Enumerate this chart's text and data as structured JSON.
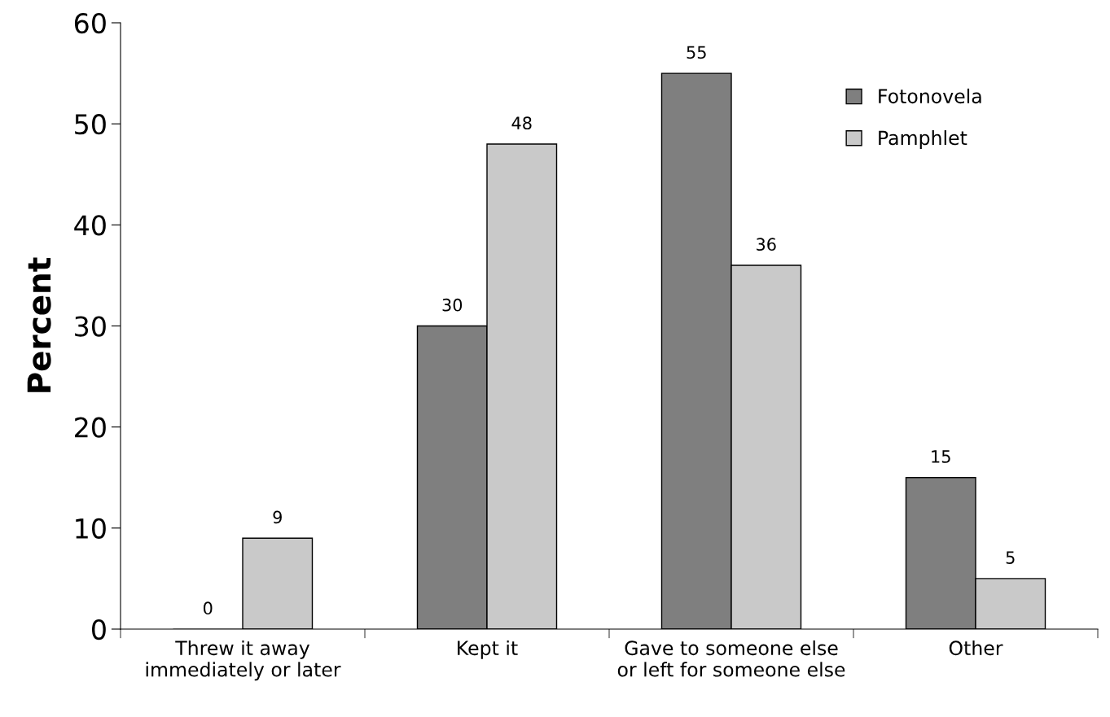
{
  "chart_data": {
    "type": "bar",
    "ylabel": "Percent",
    "categories": [
      "Threw it away\nimmediately or later",
      "Kept it",
      "Gave to someone else\nor left for someone else",
      "Other"
    ],
    "series": [
      {
        "name": "Fotonovela",
        "color": "#7f7f7f",
        "values": [
          0,
          30,
          55,
          15
        ]
      },
      {
        "name": "Pamphlet",
        "color": "#c9c9c9",
        "values": [
          9,
          48,
          36,
          5
        ]
      }
    ],
    "ylim": [
      0,
      60
    ],
    "yticks": [
      0,
      10,
      20,
      30,
      40,
      50,
      60
    ],
    "data_labels": true,
    "grid": false,
    "legend": "top right"
  }
}
